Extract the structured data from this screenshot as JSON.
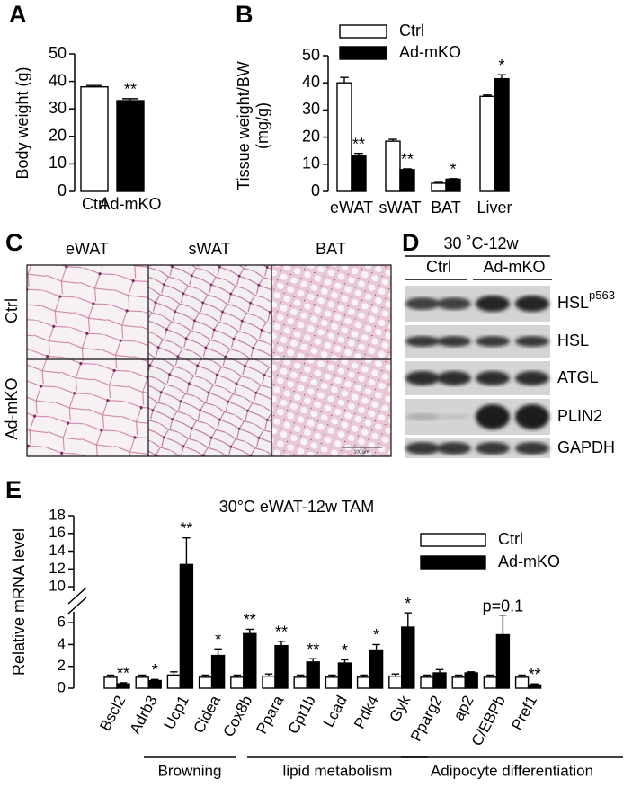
{
  "chart_data": [
    {
      "type": "bar",
      "panel": "A",
      "ylabel": "Body weight (g)",
      "categories": [
        "Ctrl",
        "Ad-mKO"
      ],
      "values": [
        38,
        33
      ],
      "errors": [
        0.5,
        0.7
      ],
      "colors": [
        "#ffffff",
        "#000000"
      ],
      "annotations": [
        null,
        "**"
      ],
      "ylim": [
        0,
        50
      ],
      "yticks": [
        0,
        10,
        20,
        30,
        40,
        50
      ]
    },
    {
      "type": "bar",
      "panel": "B",
      "ylabel": [
        "Tissue weight/BW",
        "(mg/g)"
      ],
      "categories": [
        "eWAT",
        "sWAT",
        "BAT",
        "Liver"
      ],
      "series": [
        {
          "name": "Ctrl",
          "color": "#ffffff",
          "values": [
            40,
            18.5,
            3,
            35
          ],
          "errors": [
            2,
            0.7,
            0.3,
            0.5
          ]
        },
        {
          "name": "Ad-mKO",
          "color": "#000000",
          "values": [
            13,
            8,
            4.5,
            41.5
          ],
          "errors": [
            1,
            0.3,
            0.2,
            1.5
          ]
        }
      ],
      "annotations": [
        "**",
        "**",
        "*",
        "*"
      ],
      "ylim": [
        0,
        50
      ],
      "yticks": [
        0,
        10,
        20,
        30,
        40,
        50
      ]
    },
    {
      "type": "bar",
      "panel": "E",
      "title": "30°C eWAT-12w TAM",
      "ylabel": "Relative mRNA level",
      "categories": [
        "Bscl2",
        "Adrb3",
        "Ucp1",
        "Cidea",
        "Cox8b",
        "Ppara",
        "Cpt1b",
        "Lcad",
        "Pdk4",
        "Gyk",
        "Pparg2",
        "ap2",
        "C/EBPb",
        "Pref1"
      ],
      "series": [
        {
          "name": "Ctrl",
          "color": "#ffffff",
          "values": [
            1,
            1,
            1.2,
            1,
            1,
            1.1,
            1,
            1,
            1,
            1.1,
            1,
            1,
            1,
            1
          ],
          "errors": [
            0.2,
            0.2,
            0.3,
            0.2,
            0.2,
            0.2,
            0.2,
            0.2,
            0.2,
            0.2,
            0.2,
            0.2,
            0.2,
            0.2
          ]
        },
        {
          "name": "Ad-mKO",
          "color": "#000000",
          "values": [
            0.4,
            0.7,
            12.5,
            3,
            5,
            3.9,
            2.4,
            2.3,
            3.5,
            5.6,
            1.4,
            1.4,
            4.9,
            0.3
          ],
          "errors": [
            0.1,
            0.1,
            3,
            0.6,
            0.4,
            0.4,
            0.3,
            0.3,
            0.5,
            1.3,
            0.3,
            0.1,
            1.8,
            0.1
          ]
        }
      ],
      "annotations": [
        "**",
        "*",
        "**",
        "*",
        "**",
        "**",
        "**",
        "*",
        "*",
        "*",
        null,
        null,
        "p=0.1",
        "**"
      ],
      "groups": [
        "Browning",
        "lipid metabolism",
        "Adipocyte differentiation"
      ],
      "ylim": [
        0,
        18
      ],
      "ybreak": [
        7,
        9.5
      ],
      "yticks": [
        0,
        2,
        4,
        6,
        10,
        12,
        14,
        16,
        18
      ]
    }
  ],
  "histology": {
    "panel": "C",
    "columns": [
      "eWAT",
      "sWAT",
      "BAT"
    ],
    "rows": [
      "Ctrl",
      "Ad-mKO"
    ],
    "scale_bar": "100 μm"
  },
  "western_blot": {
    "panel": "D",
    "condition": "30 ˚C-12w",
    "groups": [
      "Ctrl",
      "Ad-mKO"
    ],
    "proteins": [
      {
        "name": "HSL",
        "sup": "p563"
      },
      {
        "name": "HSL"
      },
      {
        "name": "ATGL"
      },
      {
        "name": "PLIN2"
      },
      {
        "name": "GAPDH"
      }
    ]
  }
}
